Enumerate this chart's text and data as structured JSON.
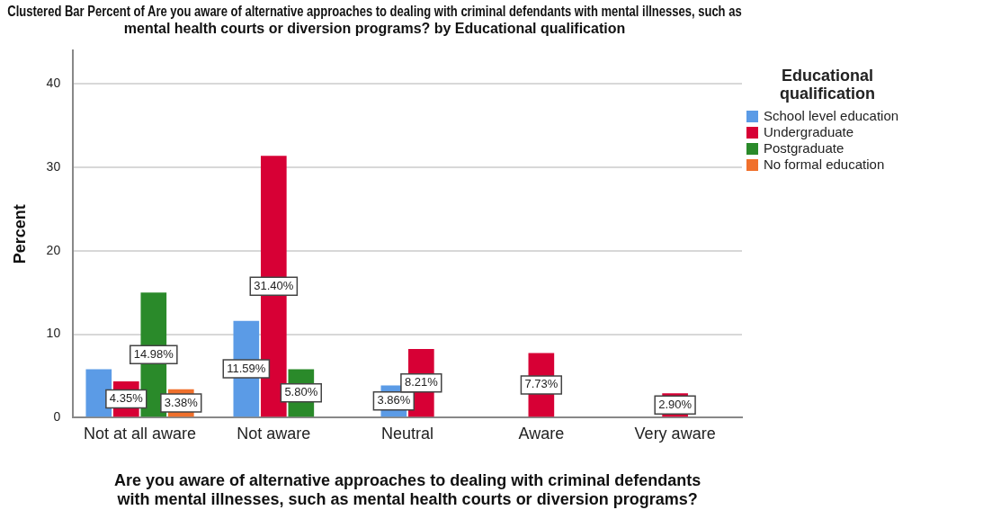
{
  "chart_data": {
    "type": "bar",
    "title": "Clustered Bar Percent of Are you aware of alternative approaches to dealing with criminal defendants with mental illnesses, such as mental health courts or diversion programs? by Educational qualification",
    "xlabel": "Are you aware of alternative approaches to dealing with criminal defendants with mental illnesses, such as mental health courts or diversion programs?",
    "ylabel": "Percent",
    "legend_title": "Educational qualification",
    "categories": [
      "Not at all aware",
      "Not aware",
      "Neutral",
      "Aware",
      "Very aware"
    ],
    "series": [
      {
        "name": "School level education",
        "color": "#5b9be6",
        "values": [
          5.8,
          11.59,
          3.86,
          null,
          null
        ],
        "value_labels": [
          null,
          "11.59%",
          "3.86%",
          null,
          null
        ]
      },
      {
        "name": "Undergraduate",
        "color": "#d70035",
        "values": [
          4.35,
          31.4,
          8.21,
          7.73,
          2.9
        ],
        "value_labels": [
          "4.35%",
          "31.40%",
          "8.21%",
          "7.73%",
          "2.90%"
        ]
      },
      {
        "name": "Postgraduate",
        "color": "#2a8a2a",
        "values": [
          14.98,
          5.8,
          null,
          null,
          null
        ],
        "value_labels": [
          "14.98%",
          "5.80%",
          null,
          null,
          null
        ]
      },
      {
        "name": "No formal education",
        "color": "#f0702c",
        "values": [
          3.38,
          null,
          null,
          null,
          null
        ],
        "value_labels": [
          "3.38%",
          null,
          null,
          null,
          null
        ]
      }
    ],
    "ylim": [
      0,
      44
    ],
    "yticks": [
      0,
      10,
      20,
      30,
      40
    ],
    "grid": "y",
    "legend": "right"
  }
}
